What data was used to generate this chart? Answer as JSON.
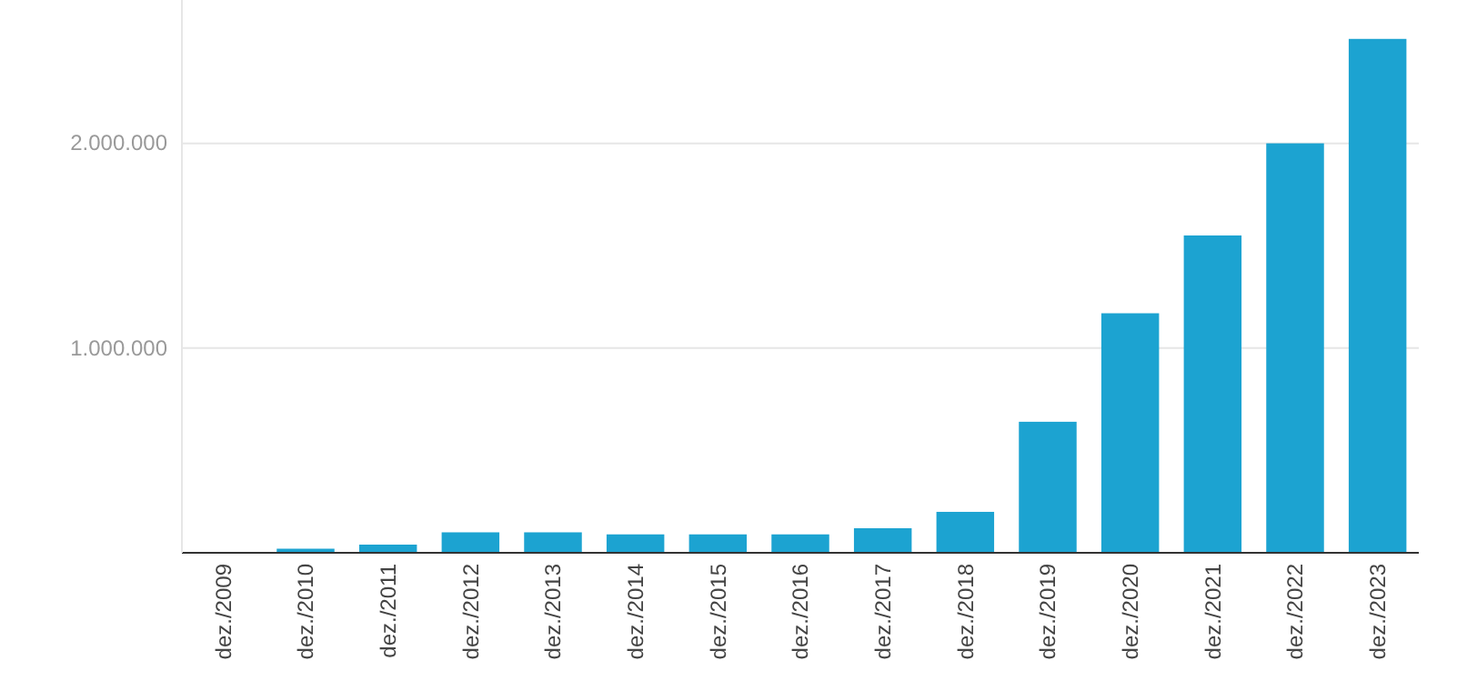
{
  "chart_data": {
    "type": "bar",
    "categories": [
      "dez./2009",
      "dez./2010",
      "dez./2011",
      "dez./2012",
      "dez./2013",
      "dez./2014",
      "dez./2015",
      "dez./2016",
      "dez./2017",
      "dez./2018",
      "dez./2019",
      "dez./2020",
      "dez./2021",
      "dez./2022",
      "dez./2023"
    ],
    "values": [
      0,
      20000,
      40000,
      100000,
      100000,
      90000,
      90000,
      90000,
      120000,
      200000,
      640000,
      1170000,
      1550000,
      2000000,
      2510000
    ],
    "color": "#1ca3d1",
    "ylim": [
      0,
      2700000
    ],
    "yticks": [
      {
        "value": 1000000,
        "label": "1.000.000"
      },
      {
        "value": 2000000,
        "label": "2.000.000"
      }
    ],
    "grid": "y"
  }
}
